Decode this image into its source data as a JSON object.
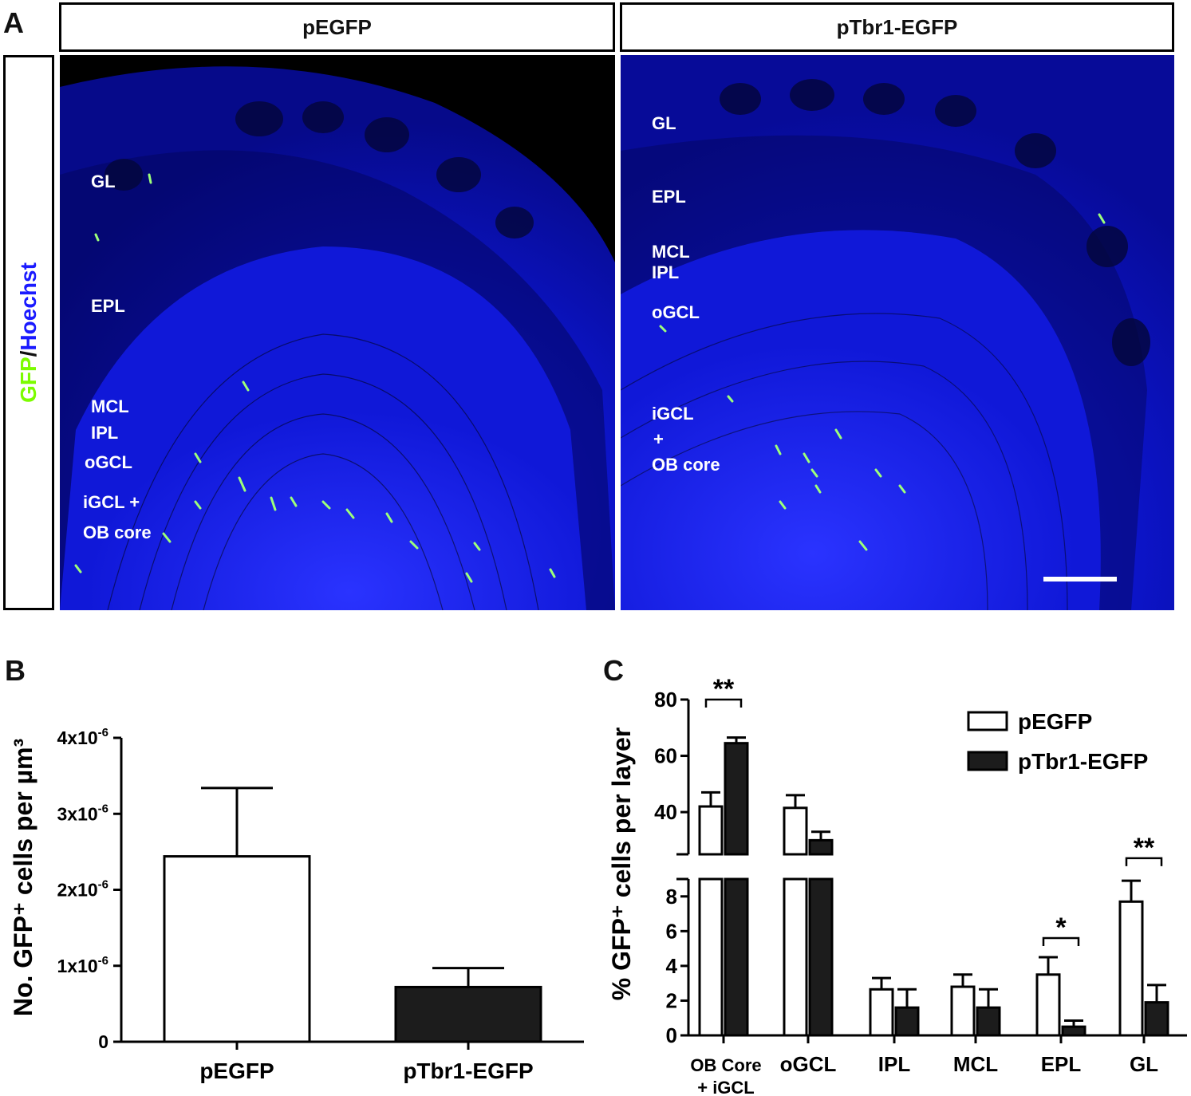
{
  "panels": {
    "a": "A",
    "b": "B",
    "c": "C"
  },
  "panel_a": {
    "headers": [
      "pEGFP",
      "pTbr1-EGFP"
    ],
    "side_label": {
      "green": "GFP",
      "sep": "/",
      "blue": "Hoechst"
    },
    "colors": {
      "green": "#7CFC00",
      "blue": "#1a1aff",
      "tissue": "#0b10c8"
    },
    "left_labels": [
      "GL",
      "EPL",
      "MCL",
      "IPL",
      "oGCL",
      "iGCL +",
      "OB core"
    ],
    "right_labels": [
      "GL",
      "EPL",
      "MCL",
      "IPL",
      "oGCL",
      "iGCL",
      "+",
      "OB core"
    ]
  },
  "chart_data": [
    {
      "type": "bar",
      "panel": "B",
      "ylabel": "No. GFP⁺ cells per µm³",
      "categories": [
        "pEGFP",
        "pTbr1-EGFP"
      ],
      "values": [
        2.44e-06,
        7.2e-07
      ],
      "errors": [
        9e-07,
        2.5e-07
      ],
      "fills": [
        "#ffffff",
        "#1c1c1c"
      ],
      "ylim": [
        0,
        4e-06
      ],
      "yticks": [
        {
          "value": 0,
          "base": "0",
          "exp": ""
        },
        {
          "value": 1e-06,
          "base": "1x10",
          "exp": "-6"
        },
        {
          "value": 2e-06,
          "base": "2x10",
          "exp": "-6"
        },
        {
          "value": 3e-06,
          "base": "3x10",
          "exp": "-6"
        },
        {
          "value": 4e-06,
          "base": "4x10",
          "exp": "-6"
        }
      ]
    },
    {
      "type": "bar",
      "panel": "C",
      "ylabel": "% GFP⁺ cells per layer",
      "categories": [
        "OB Core\n+ iGCL",
        "oGCL",
        "IPL",
        "MCL",
        "EPL",
        "GL"
      ],
      "series": [
        {
          "name": "pEGFP",
          "values": [
            42,
            41.5,
            2.65,
            2.8,
            3.5,
            7.7
          ],
          "errors": [
            5,
            4.5,
            0.65,
            0.7,
            1.0,
            1.2
          ],
          "fill": "#ffffff"
        },
        {
          "name": "pTbr1-EGFP",
          "values": [
            64.5,
            30,
            1.6,
            1.6,
            0.5,
            1.9
          ],
          "errors": [
            2,
            3,
            1.05,
            1.05,
            0.35,
            1.0
          ],
          "fill": "#1c1c1c"
        }
      ],
      "broken_axis": {
        "lower": [
          0,
          9
        ],
        "upper": [
          25,
          80
        ]
      },
      "yticks_lower": [
        0,
        2,
        4,
        6,
        8
      ],
      "yticks_upper": [
        40,
        60,
        80
      ],
      "significance": [
        {
          "category": 0,
          "label": "**"
        },
        {
          "category": 4,
          "label": "*"
        },
        {
          "category": 5,
          "label": "**"
        }
      ],
      "legend_position": "top-right"
    }
  ]
}
